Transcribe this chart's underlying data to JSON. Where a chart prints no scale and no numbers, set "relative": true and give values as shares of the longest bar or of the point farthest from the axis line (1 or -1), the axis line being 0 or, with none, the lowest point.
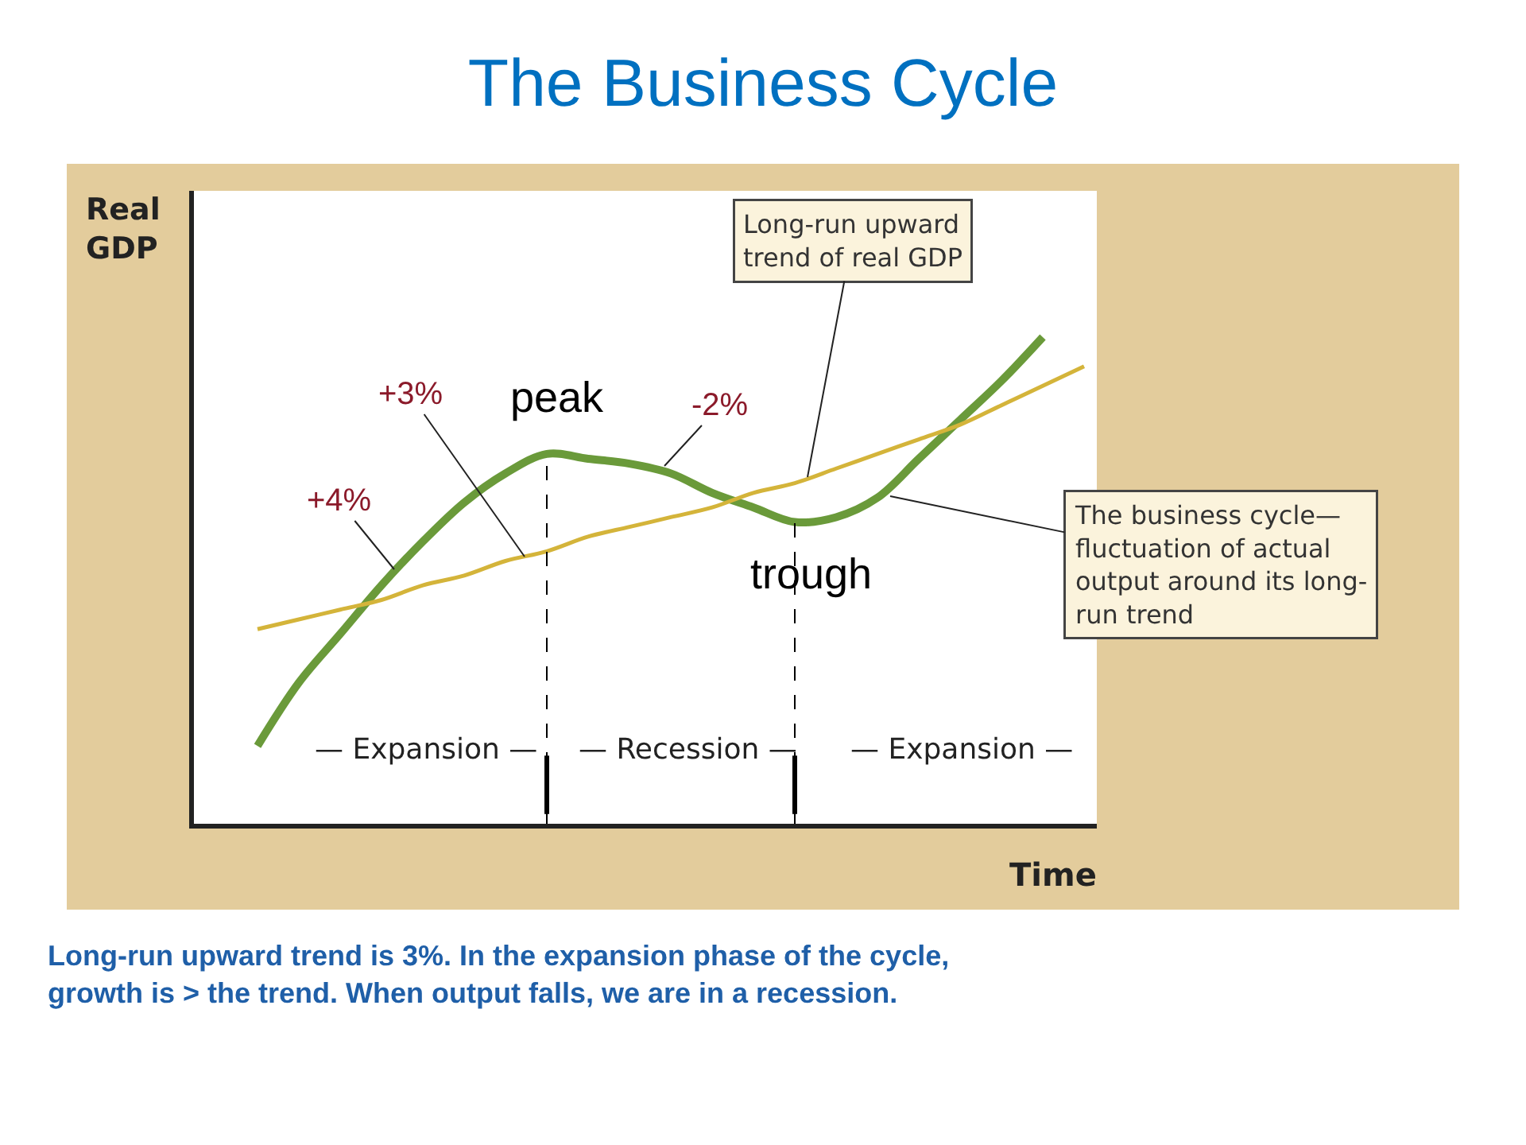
{
  "chart_data": {
    "type": "line",
    "relative": true,
    "title": "The Business Cycle",
    "xlabel": "Time",
    "ylabel": "Real GDP",
    "categories": [
      null,
      null,
      null,
      null,
      null,
      null,
      null,
      null,
      null,
      null,
      null,
      null,
      null,
      null,
      null,
      null,
      null,
      null,
      null,
      null,
      null
    ],
    "series": [
      {
        "color": "#6a9a3a",
        "values": [
          0.16,
          0.29,
          0.39,
          0.49,
          0.58,
          0.66,
          0.72,
          0.76,
          0.75,
          0.74,
          0.72,
          0.68,
          0.65,
          0.62,
          0.63,
          0.67,
          0.75,
          0.83,
          0.91,
          1.0,
          null
        ]
      },
      {
        "color": "#d4b43a",
        "values": [
          0.4,
          0.42,
          0.44,
          0.46,
          0.49,
          0.51,
          0.54,
          0.56,
          0.59,
          0.61,
          0.63,
          0.65,
          0.68,
          0.7,
          0.73,
          0.76,
          0.79,
          0.82,
          0.86,
          0.9,
          0.94
        ]
      }
    ],
    "annotations": [
      "+3%",
      "+4%",
      "peak",
      "-2%",
      "trough",
      "— Expansion —",
      "— Recession —",
      "— Expansion —",
      "Long-run upward\ntrend of real GDP",
      "The business cycle—\nfluctuation of actual\noutput around its long-\nrun trend",
      "Long-run upward trend is 3%. In the expansion phase of the cycle,\ngrowth is > the trend. When output falls, we are in a recession."
    ],
    "legend": false,
    "line_style": "solid",
    "marker": "none"
  }
}
